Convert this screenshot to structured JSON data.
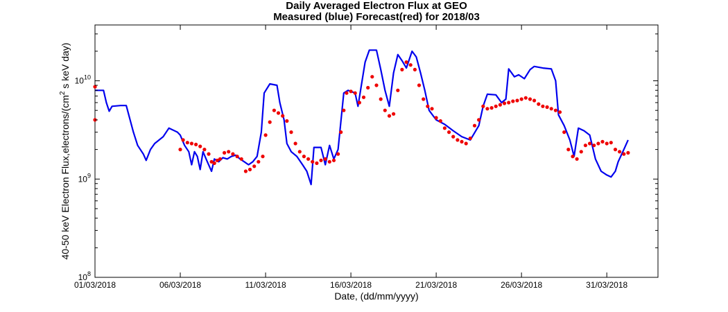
{
  "chart_data": {
    "type": "line",
    "title": "Daily Averaged Electron Flux at GEO",
    "subtitle": "Measured (blue) Forecast(red) for 2018/03",
    "xlabel": "Date, (dd/mm/yyyy)",
    "ylabel_main": "40-50 keV Electron Flux,electrons/(cm",
    "ylabel_sup": "2",
    "ylabel_tail": " s keV day)",
    "y_scale": "log",
    "ylim": [
      100000000.0,
      37000000000.0
    ],
    "xlim": [
      "2018-03-01",
      "2018-04-03"
    ],
    "x_ticks": [
      "01/03/2018",
      "06/03/2018",
      "11/03/2018",
      "16/03/2018",
      "21/03/2018",
      "26/03/2018",
      "31/03/2018"
    ],
    "x_tick_dates": [
      "2018-03-01",
      "2018-03-06",
      "2018-03-11",
      "2018-03-16",
      "2018-03-21",
      "2018-03-26",
      "2018-03-31"
    ],
    "y_ticks": [
      {
        "value": 100000000.0,
        "base": "10",
        "exp": "8"
      },
      {
        "value": 1000000000.0,
        "base": "10",
        "exp": "9"
      },
      {
        "value": 10000000000.0,
        "base": "10",
        "exp": "10"
      }
    ],
    "grid": false,
    "series": [
      {
        "name": "Measured",
        "color": "#0000ee",
        "style": "line",
        "points": [
          [
            "2018-03-01 00:00",
            8000000000.0
          ],
          [
            "2018-03-01 12:00",
            8000000000.0
          ],
          [
            "2018-03-01 16:00",
            6000000000.0
          ],
          [
            "2018-03-01 20:00",
            4900000000.0
          ],
          [
            "2018-03-02 00:00",
            5500000000.0
          ],
          [
            "2018-03-02 12:00",
            5600000000.0
          ],
          [
            "2018-03-02 20:00",
            5600000000.0
          ],
          [
            "2018-03-03 06:00",
            3000000000.0
          ],
          [
            "2018-03-03 12:00",
            2200000000.0
          ],
          [
            "2018-03-03 20:00",
            1800000000.0
          ],
          [
            "2018-03-04 00:00",
            1550000000.0
          ],
          [
            "2018-03-04 06:00",
            2000000000.0
          ],
          [
            "2018-03-04 12:00",
            2300000000.0
          ],
          [
            "2018-03-05 00:00",
            2700000000.0
          ],
          [
            "2018-03-05 08:00",
            3300000000.0
          ],
          [
            "2018-03-05 20:00",
            3000000000.0
          ],
          [
            "2018-03-06 00:00",
            2800000000.0
          ],
          [
            "2018-03-06 06:00",
            2200000000.0
          ],
          [
            "2018-03-06 12:00",
            1900000000.0
          ],
          [
            "2018-03-06 16:00",
            1400000000.0
          ],
          [
            "2018-03-06 20:00",
            1900000000.0
          ],
          [
            "2018-03-07 00:00",
            1700000000.0
          ],
          [
            "2018-03-07 04:00",
            1250000000.0
          ],
          [
            "2018-03-07 08:00",
            1900000000.0
          ],
          [
            "2018-03-07 14:00",
            1500000000.0
          ],
          [
            "2018-03-07 20:00",
            1200000000.0
          ],
          [
            "2018-03-08 00:00",
            1600000000.0
          ],
          [
            "2018-03-08 06:00",
            1500000000.0
          ],
          [
            "2018-03-08 12:00",
            1650000000.0
          ],
          [
            "2018-03-08 18:00",
            1600000000.0
          ],
          [
            "2018-03-09 00:00",
            1700000000.0
          ],
          [
            "2018-03-09 06:00",
            1750000000.0
          ],
          [
            "2018-03-09 12:00",
            1600000000.0
          ],
          [
            "2018-03-09 18:00",
            1500000000.0
          ],
          [
            "2018-03-10 00:00",
            1400000000.0
          ],
          [
            "2018-03-10 06:00",
            1500000000.0
          ],
          [
            "2018-03-10 12:00",
            1700000000.0
          ],
          [
            "2018-03-10 18:00",
            3000000000.0
          ],
          [
            "2018-03-10 22:00",
            7500000000.0
          ],
          [
            "2018-03-11 06:00",
            9300000000.0
          ],
          [
            "2018-03-11 16:00",
            9000000000.0
          ],
          [
            "2018-03-11 20:00",
            6000000000.0
          ],
          [
            "2018-03-12 02:00",
            4000000000.0
          ],
          [
            "2018-03-12 06:00",
            2300000000.0
          ],
          [
            "2018-03-12 12:00",
            1900000000.0
          ],
          [
            "2018-03-12 20:00",
            1700000000.0
          ],
          [
            "2018-03-13 04:00",
            1400000000.0
          ],
          [
            "2018-03-13 10:00",
            1200000000.0
          ],
          [
            "2018-03-13 16:00",
            880000000.0
          ],
          [
            "2018-03-13 20:00",
            2100000000.0
          ],
          [
            "2018-03-14 06:00",
            2100000000.0
          ],
          [
            "2018-03-14 12:00",
            1400000000.0
          ],
          [
            "2018-03-14 18:00",
            2200000000.0
          ],
          [
            "2018-03-15 00:00",
            1600000000.0
          ],
          [
            "2018-03-15 06:00",
            2000000000.0
          ],
          [
            "2018-03-15 14:00",
            7500000000.0
          ],
          [
            "2018-03-15 20:00",
            8000000000.0
          ],
          [
            "2018-03-16 06:00",
            7500000000.0
          ],
          [
            "2018-03-16 10:00",
            5500000000.0
          ],
          [
            "2018-03-16 20:00",
            15500000000.0
          ],
          [
            "2018-03-17 02:00",
            20500000000.0
          ],
          [
            "2018-03-17 12:00",
            20500000000.0
          ],
          [
            "2018-03-17 18:00",
            13000000000.0
          ],
          [
            "2018-03-18 00:00",
            8000000000.0
          ],
          [
            "2018-03-18 06:00",
            5500000000.0
          ],
          [
            "2018-03-18 12:00",
            12000000000.0
          ],
          [
            "2018-03-18 18:00",
            18500000000.0
          ],
          [
            "2018-03-19 00:00",
            16000000000.0
          ],
          [
            "2018-03-19 06:00",
            13500000000.0
          ],
          [
            "2018-03-19 14:00",
            20000000000.0
          ],
          [
            "2018-03-19 20:00",
            17500000000.0
          ],
          [
            "2018-03-20 02:00",
            12000000000.0
          ],
          [
            "2018-03-20 08:00",
            8000000000.0
          ],
          [
            "2018-03-20 14:00",
            5000000000.0
          ],
          [
            "2018-03-21 00:00",
            4000000000.0
          ],
          [
            "2018-03-21 12:00",
            3600000000.0
          ],
          [
            "2018-03-22 00:00",
            3100000000.0
          ],
          [
            "2018-03-22 12:00",
            2700000000.0
          ],
          [
            "2018-03-23 00:00",
            2500000000.0
          ],
          [
            "2018-03-23 12:00",
            3500000000.0
          ],
          [
            "2018-03-23 18:00",
            5500000000.0
          ],
          [
            "2018-03-24 00:00",
            7300000000.0
          ],
          [
            "2018-03-24 12:00",
            7200000000.0
          ],
          [
            "2018-03-24 20:00",
            6000000000.0
          ],
          [
            "2018-03-25 02:00",
            6500000000.0
          ],
          [
            "2018-03-25 06:00",
            13200000000.0
          ],
          [
            "2018-03-25 14:00",
            11000000000.0
          ],
          [
            "2018-03-25 20:00",
            11500000000.0
          ],
          [
            "2018-03-26 04:00",
            10500000000.0
          ],
          [
            "2018-03-26 12:00",
            13000000000.0
          ],
          [
            "2018-03-26 18:00",
            14000000000.0
          ],
          [
            "2018-03-27 06:00",
            13500000000.0
          ],
          [
            "2018-03-27 18:00",
            13200000000.0
          ],
          [
            "2018-03-28 00:00",
            10000000000.0
          ],
          [
            "2018-03-28 04:00",
            4500000000.0
          ],
          [
            "2018-03-28 12:00",
            3500000000.0
          ],
          [
            "2018-03-28 20:00",
            2500000000.0
          ],
          [
            "2018-03-29 02:00",
            1700000000.0
          ],
          [
            "2018-03-29 08:00",
            3300000000.0
          ],
          [
            "2018-03-29 16:00",
            3100000000.0
          ],
          [
            "2018-03-30 00:00",
            2800000000.0
          ],
          [
            "2018-03-30 08:00",
            1600000000.0
          ],
          [
            "2018-03-30 16:00",
            1200000000.0
          ],
          [
            "2018-03-31 00:00",
            1100000000.0
          ],
          [
            "2018-03-31 06:00",
            1050000000.0
          ],
          [
            "2018-03-31 12:00",
            1200000000.0
          ],
          [
            "2018-03-31 16:00",
            1500000000.0
          ],
          [
            "2018-04-01 00:00",
            2000000000.0
          ],
          [
            "2018-04-01 06:00",
            2500000000.0
          ]
        ]
      },
      {
        "name": "Forecast",
        "color": "#ee0000",
        "style": "markers",
        "points": [
          [
            "2018-03-01 00:00",
            8700000000.0
          ],
          [
            "2018-03-01 00:00",
            4000000000.0
          ],
          [
            "2018-03-06 00:00",
            2000000000.0
          ],
          [
            "2018-03-06 04:00",
            2500000000.0
          ],
          [
            "2018-03-06 10:00",
            2350000000.0
          ],
          [
            "2018-03-06 16:00",
            2300000000.0
          ],
          [
            "2018-03-06 22:00",
            2250000000.0
          ],
          [
            "2018-03-07 04:00",
            2150000000.0
          ],
          [
            "2018-03-07 10:00",
            2000000000.0
          ],
          [
            "2018-03-07 16:00",
            1800000000.0
          ],
          [
            "2018-03-07 20:00",
            1500000000.0
          ],
          [
            "2018-03-08 00:00",
            1450000000.0
          ],
          [
            "2018-03-08 04:00",
            1550000000.0
          ],
          [
            "2018-03-08 08:00",
            1600000000.0
          ],
          [
            "2018-03-08 14:00",
            1850000000.0
          ],
          [
            "2018-03-08 20:00",
            1900000000.0
          ],
          [
            "2018-03-09 02:00",
            1800000000.0
          ],
          [
            "2018-03-09 08:00",
            1700000000.0
          ],
          [
            "2018-03-09 14:00",
            1600000000.0
          ],
          [
            "2018-03-09 20:00",
            1200000000.0
          ],
          [
            "2018-03-10 02:00",
            1250000000.0
          ],
          [
            "2018-03-10 08:00",
            1350000000.0
          ],
          [
            "2018-03-10 14:00",
            1500000000.0
          ],
          [
            "2018-03-10 20:00",
            1700000000.0
          ],
          [
            "2018-03-11 00:00",
            2800000000.0
          ],
          [
            "2018-03-11 06:00",
            3800000000.0
          ],
          [
            "2018-03-11 12:00",
            5000000000.0
          ],
          [
            "2018-03-11 18:00",
            4700000000.0
          ],
          [
            "2018-03-12 00:00",
            4400000000.0
          ],
          [
            "2018-03-12 06:00",
            3900000000.0
          ],
          [
            "2018-03-12 12:00",
            3000000000.0
          ],
          [
            "2018-03-12 18:00",
            2300000000.0
          ],
          [
            "2018-03-13 00:00",
            1900000000.0
          ],
          [
            "2018-03-13 06:00",
            1700000000.0
          ],
          [
            "2018-03-13 12:00",
            1600000000.0
          ],
          [
            "2018-03-13 18:00",
            1500000000.0
          ],
          [
            "2018-03-14 00:00",
            1450000000.0
          ],
          [
            "2018-03-14 06:00",
            1550000000.0
          ],
          [
            "2018-03-14 12:00",
            1600000000.0
          ],
          [
            "2018-03-14 18:00",
            1500000000.0
          ],
          [
            "2018-03-15 00:00",
            1550000000.0
          ],
          [
            "2018-03-15 06:00",
            1800000000.0
          ],
          [
            "2018-03-15 10:00",
            3000000000.0
          ],
          [
            "2018-03-15 14:00",
            5000000000.0
          ],
          [
            "2018-03-15 18:00",
            7500000000.0
          ],
          [
            "2018-03-16 00:00",
            7800000000.0
          ],
          [
            "2018-03-16 06:00",
            7500000000.0
          ],
          [
            "2018-03-16 12:00",
            6000000000.0
          ],
          [
            "2018-03-16 18:00",
            6800000000.0
          ],
          [
            "2018-03-17 00:00",
            8500000000.0
          ],
          [
            "2018-03-17 06:00",
            11000000000.0
          ],
          [
            "2018-03-17 12:00",
            9000000000.0
          ],
          [
            "2018-03-17 18:00",
            6500000000.0
          ],
          [
            "2018-03-18 00:00",
            5000000000.0
          ],
          [
            "2018-03-18 06:00",
            4400000000.0
          ],
          [
            "2018-03-18 12:00",
            4600000000.0
          ],
          [
            "2018-03-18 18:00",
            8000000000.0
          ],
          [
            "2018-03-19 00:00",
            13000000000.0
          ],
          [
            "2018-03-19 06:00",
            15500000000.0
          ],
          [
            "2018-03-19 12:00",
            14500000000.0
          ],
          [
            "2018-03-19 18:00",
            13000000000.0
          ],
          [
            "2018-03-20 00:00",
            9000000000.0
          ],
          [
            "2018-03-20 06:00",
            6500000000.0
          ],
          [
            "2018-03-20 12:00",
            5500000000.0
          ],
          [
            "2018-03-20 18:00",
            5200000000.0
          ],
          [
            "2018-03-21 00:00",
            4200000000.0
          ],
          [
            "2018-03-21 06:00",
            3900000000.0
          ],
          [
            "2018-03-21 12:00",
            3300000000.0
          ],
          [
            "2018-03-21 18:00",
            3000000000.0
          ],
          [
            "2018-03-22 00:00",
            2700000000.0
          ],
          [
            "2018-03-22 06:00",
            2500000000.0
          ],
          [
            "2018-03-22 12:00",
            2400000000.0
          ],
          [
            "2018-03-22 18:00",
            2300000000.0
          ],
          [
            "2018-03-23 00:00",
            2600000000.0
          ],
          [
            "2018-03-23 06:00",
            3500000000.0
          ],
          [
            "2018-03-23 12:00",
            4000000000.0
          ],
          [
            "2018-03-23 18:00",
            5500000000.0
          ],
          [
            "2018-03-24 00:00",
            5200000000.0
          ],
          [
            "2018-03-24 06:00",
            5300000000.0
          ],
          [
            "2018-03-24 12:00",
            5500000000.0
          ],
          [
            "2018-03-24 18:00",
            5700000000.0
          ],
          [
            "2018-03-25 00:00",
            5900000000.0
          ],
          [
            "2018-03-25 06:00",
            6000000000.0
          ],
          [
            "2018-03-25 12:00",
            6200000000.0
          ],
          [
            "2018-03-25 18:00",
            6300000000.0
          ],
          [
            "2018-03-26 00:00",
            6500000000.0
          ],
          [
            "2018-03-26 06:00",
            6700000000.0
          ],
          [
            "2018-03-26 12:00",
            6500000000.0
          ],
          [
            "2018-03-26 18:00",
            6300000000.0
          ],
          [
            "2018-03-27 00:00",
            5800000000.0
          ],
          [
            "2018-03-27 06:00",
            5500000000.0
          ],
          [
            "2018-03-27 12:00",
            5400000000.0
          ],
          [
            "2018-03-27 18:00",
            5200000000.0
          ],
          [
            "2018-03-28 00:00",
            5000000000.0
          ],
          [
            "2018-03-28 06:00",
            4800000000.0
          ],
          [
            "2018-03-28 12:00",
            3000000000.0
          ],
          [
            "2018-03-28 18:00",
            2000000000.0
          ],
          [
            "2018-03-29 00:00",
            1700000000.0
          ],
          [
            "2018-03-29 06:00",
            1600000000.0
          ],
          [
            "2018-03-29 12:00",
            1900000000.0
          ],
          [
            "2018-03-29 18:00",
            2200000000.0
          ],
          [
            "2018-03-30 00:00",
            2300000000.0
          ],
          [
            "2018-03-30 06:00",
            2200000000.0
          ],
          [
            "2018-03-30 12:00",
            2300000000.0
          ],
          [
            "2018-03-30 18:00",
            2400000000.0
          ],
          [
            "2018-03-31 00:00",
            2300000000.0
          ],
          [
            "2018-03-31 06:00",
            2350000000.0
          ],
          [
            "2018-03-31 12:00",
            2000000000.0
          ],
          [
            "2018-03-31 18:00",
            1900000000.0
          ],
          [
            "2018-04-01 00:00",
            1800000000.0
          ],
          [
            "2018-04-01 06:00",
            1850000000.0
          ]
        ]
      }
    ]
  }
}
